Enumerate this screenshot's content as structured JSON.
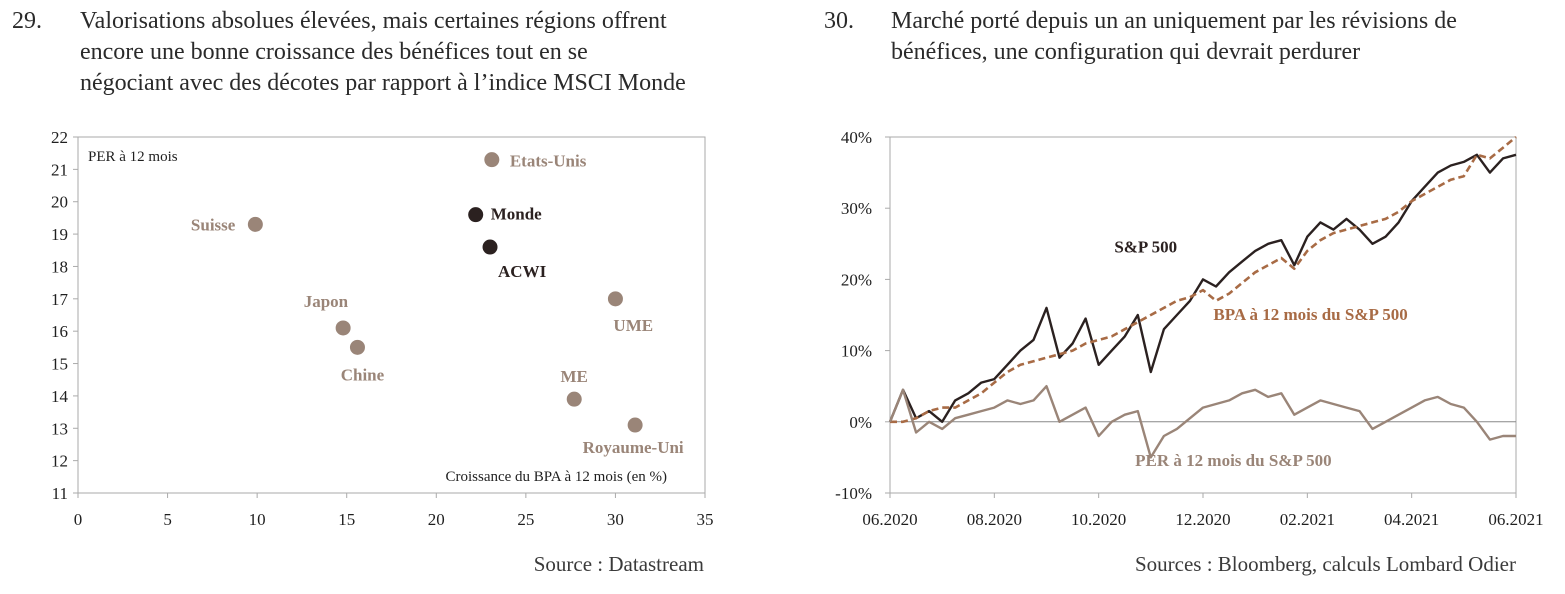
{
  "colors": {
    "dark": "#2b2120",
    "tan": "#9a8578",
    "brown_dashed": "#a86b45",
    "frame": "#aaaaaa"
  },
  "chart_data": [
    {
      "number": "29.",
      "type": "scatter",
      "title": "Valorisations absolues élevées, mais certaines régions offrent encore une bonne croissance des bénéfices tout en se négociant avec des décotes par rapport à l’indice MSCI Monde",
      "title_lines": [
        "Valorisations absolues élevées, mais certaines régions offrent",
        "encore une bonne croissance des bénéfices tout en se",
        "négociant avec des décotes par rapport à l’indice MSCI Monde"
      ],
      "xlabel": "Croissance du BPA à 12 mois (en %)",
      "ylabel": "PER à 12 mois",
      "xlim": [
        0,
        35
      ],
      "ylim": [
        11,
        22
      ],
      "xticks": [
        0,
        5,
        10,
        15,
        20,
        25,
        30,
        35
      ],
      "yticks": [
        11,
        12,
        13,
        14,
        15,
        16,
        17,
        18,
        19,
        20,
        21,
        22
      ],
      "grid": false,
      "points": [
        {
          "label": "Etats-Unis",
          "x": 23.1,
          "y": 21.3,
          "highlight": false
        },
        {
          "label": "Suisse",
          "x": 9.9,
          "y": 19.3,
          "highlight": false
        },
        {
          "label": "Monde",
          "x": 22.2,
          "y": 19.6,
          "highlight": true
        },
        {
          "label": "ACWI",
          "x": 23.0,
          "y": 18.6,
          "highlight": true
        },
        {
          "label": "UME",
          "x": 30.0,
          "y": 17.0,
          "highlight": false
        },
        {
          "label": "Japon",
          "x": 14.8,
          "y": 16.1,
          "highlight": false
        },
        {
          "label": "Chine",
          "x": 15.6,
          "y": 15.5,
          "highlight": false
        },
        {
          "label": "ME",
          "x": 27.7,
          "y": 13.9,
          "highlight": false
        },
        {
          "label": "Royaume-Uni",
          "x": 31.1,
          "y": 13.1,
          "highlight": false
        }
      ],
      "source": "Source : Datastream"
    },
    {
      "number": "30.",
      "type": "line",
      "title": "Marché porté depuis un an uniquement par les révisions de bénéfices, une configuration qui devrait perdurer",
      "title_lines": [
        "Marché porté depuis un an uniquement par les révisions de",
        "bénéfices, une configuration qui devrait perdurer"
      ],
      "xlabel": "",
      "ylabel": "",
      "x_ticks": [
        "06.2020",
        "08.2020",
        "10.2020",
        "12.2020",
        "02.2021",
        "04.2021",
        "06.2021"
      ],
      "ylim": [
        -10,
        40
      ],
      "yticks": [
        -10,
        0,
        10,
        20,
        30,
        40
      ],
      "ytick_labels": [
        "-10%",
        "0%",
        "10%",
        "20%",
        "30%",
        "40%"
      ],
      "grid": false,
      "x_months": [
        0,
        0.25,
        0.5,
        0.75,
        1,
        1.25,
        1.5,
        1.75,
        2,
        2.25,
        2.5,
        2.75,
        3,
        3.25,
        3.5,
        3.75,
        4,
        4.25,
        4.5,
        4.75,
        5,
        5.25,
        5.5,
        5.75,
        6,
        6.25,
        6.5,
        6.75,
        7,
        7.25,
        7.5,
        7.75,
        8,
        8.25,
        8.5,
        8.75,
        9,
        9.25,
        9.5,
        9.75,
        10,
        10.25,
        10.5,
        10.75,
        11,
        11.25,
        11.5,
        11.75,
        12
      ],
      "series": [
        {
          "name": "S&P 500",
          "style": "solid",
          "color_key": "dark",
          "values": [
            0,
            4.5,
            0.5,
            1.5,
            0,
            3,
            4,
            5.5,
            6,
            8,
            10,
            11.5,
            16,
            9,
            11,
            14.5,
            8,
            10,
            12,
            15,
            7,
            13,
            15,
            17,
            20,
            19,
            21,
            22.5,
            24,
            25,
            25.5,
            22,
            26,
            28,
            27,
            28.5,
            27,
            25,
            26,
            28,
            31,
            33,
            35,
            36,
            36.5,
            37.5,
            35,
            37,
            37.5
          ]
        },
        {
          "name": "BPA à 12 mois du S&P 500",
          "style": "dashed",
          "color_key": "brown_dashed",
          "values": [
            0,
            0,
            0.5,
            1.5,
            2,
            2,
            3,
            4,
            5.5,
            7,
            8,
            8.5,
            9,
            9.5,
            10,
            11,
            11.5,
            12,
            13,
            14,
            15,
            16,
            17,
            17.5,
            18.5,
            17,
            18,
            19.5,
            21,
            22,
            23,
            21.5,
            24,
            25.5,
            26.5,
            27,
            27.5,
            28,
            28.5,
            29.5,
            31,
            32,
            33,
            34,
            34.5,
            37.5,
            37,
            38.5,
            40
          ]
        },
        {
          "name": "PER à 12 mois du S&P 500",
          "style": "solid",
          "color_key": "tan",
          "values": [
            0,
            4.5,
            -1.5,
            0,
            -1,
            0.5,
            1,
            1.5,
            2,
            3,
            2.5,
            3,
            5,
            0,
            1,
            2,
            -2,
            0,
            1,
            1.5,
            -5,
            -2,
            -1,
            0.5,
            2,
            2.5,
            3,
            4,
            4.5,
            3.5,
            4,
            1,
            2,
            3,
            2.5,
            2,
            1.5,
            -1,
            0,
            1,
            2,
            3,
            3.5,
            2.5,
            2,
            0,
            -2.5,
            -2,
            -2
          ]
        }
      ],
      "annotations": [
        {
          "text": "S&P 500",
          "at": [
            4.3,
            23.8
          ]
        },
        {
          "text": "BPA à 12 mois du S&P 500",
          "at": [
            6.2,
            14.3
          ]
        },
        {
          "text": "PER à 12 mois du S&P 500",
          "at": [
            4.7,
            -6.2
          ]
        }
      ],
      "source": "Sources : Bloomberg, calculs Lombard Odier"
    }
  ]
}
